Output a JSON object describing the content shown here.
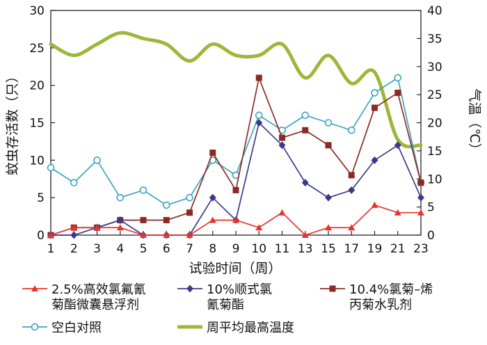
{
  "chart_data": {
    "type": "line",
    "x": [
      "1",
      "2",
      "3",
      "4",
      "5",
      "6",
      "7",
      "8",
      "9",
      "10",
      "11",
      "13",
      "15",
      "17",
      "19",
      "21",
      "23"
    ],
    "xlabel": "试验时间（周）",
    "ylabel_left": "蚊虫存活数（只）",
    "ylabel_right": "气温（℃）",
    "ylim_left": [
      0,
      30
    ],
    "ylim_right": [
      0,
      40
    ],
    "yticks_left": [
      0,
      5,
      10,
      15,
      20,
      25,
      30
    ],
    "yticks_right": [
      0,
      5,
      10,
      15,
      20,
      25,
      30,
      35,
      40
    ],
    "grid": false,
    "legend_position": "bottom",
    "series": [
      {
        "name_lines": [
          "2.5%高效氯氟氰",
          "菊酯微囊悬浮剂"
        ],
        "axis": "left",
        "color": "#e8332a",
        "marker": "triangle",
        "values": [
          0,
          1,
          1,
          1,
          0,
          0,
          0,
          2,
          2,
          1,
          3,
          0,
          1,
          1,
          4,
          3,
          3
        ]
      },
      {
        "name_lines": [
          "10%顺式氯",
          "氰菊酯"
        ],
        "axis": "left",
        "color": "#3a3a8c",
        "marker": "diamond",
        "values": [
          0,
          0,
          1,
          2,
          0,
          0,
          0,
          5,
          2,
          15,
          12,
          7,
          5,
          6,
          10,
          12,
          5
        ]
      },
      {
        "name_lines": [
          "10.4%氯菊–烯",
          "丙菊水乳剂"
        ],
        "axis": "left",
        "color": "#8b2a24",
        "marker": "square",
        "values": [
          0,
          1,
          1,
          2,
          2,
          2,
          3,
          11,
          6,
          21,
          13,
          14,
          12,
          8,
          17,
          19,
          7
        ]
      },
      {
        "name_lines": [
          "空白对照"
        ],
        "axis": "left",
        "color": "#3ca3be",
        "marker": "circle",
        "values": [
          9,
          7,
          10,
          5,
          6,
          4,
          5,
          10,
          8,
          16,
          14,
          16,
          15,
          14,
          19,
          21,
          7
        ]
      },
      {
        "name_lines": [
          "周平均最高温度"
        ],
        "axis": "right",
        "color": "#9bb83a",
        "marker": "none",
        "values": [
          34,
          32,
          34,
          36,
          35,
          34,
          31,
          34,
          32,
          32,
          34,
          28,
          32,
          27,
          29,
          17,
          16
        ]
      }
    ]
  }
}
